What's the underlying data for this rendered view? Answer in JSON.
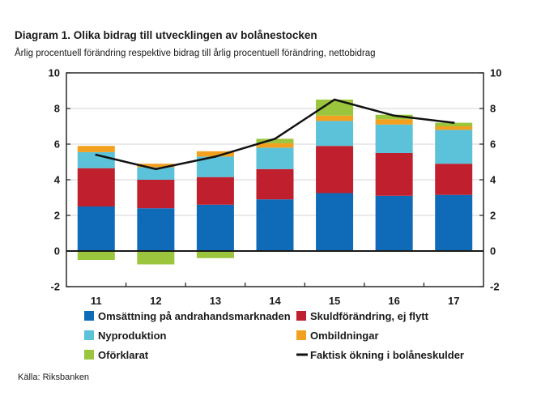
{
  "header": {
    "title": "Diagram 1. Olika bidrag till utvecklingen av bolånestocken",
    "subtitle": "Årlig procentuell förändring respektive bidrag till årlig procentuell förändring, nettobidrag"
  },
  "footer": {
    "source": "Källa: Riksbanken"
  },
  "chart_data": {
    "type": "bar",
    "stacked": true,
    "title": "Diagram 1. Olika bidrag till utvecklingen av bolånestocken",
    "ylabel": "Årlig procentuell förändring respektive bidrag till årlig procentuell förändring, nettobidrag",
    "xlabel": "",
    "ylim": [
      -2,
      10
    ],
    "yticks": [
      -2,
      0,
      2,
      4,
      6,
      8,
      10
    ],
    "categories": [
      "11",
      "12",
      "13",
      "14",
      "15",
      "16",
      "17"
    ],
    "series": [
      {
        "name": "Omsättning på andrahandsmarknaden",
        "type": "bar",
        "color": "#0f6bb8",
        "values": [
          2.5,
          2.4,
          2.6,
          2.9,
          3.25,
          3.1,
          3.15
        ]
      },
      {
        "name": "Skuldförändring, ej flytt",
        "type": "bar",
        "color": "#c0202e",
        "values": [
          2.15,
          1.6,
          1.55,
          1.7,
          2.65,
          2.4,
          1.75
        ]
      },
      {
        "name": "Nyproduktion",
        "type": "bar",
        "color": "#5bc2d9",
        "values": [
          0.9,
          0.7,
          1.15,
          1.2,
          1.4,
          1.6,
          1.9
        ]
      },
      {
        "name": "Ombildningar",
        "type": "bar",
        "color": "#f2a020",
        "values": [
          0.35,
          0.2,
          0.3,
          0.25,
          0.3,
          0.3,
          0.2
        ]
      },
      {
        "name": "Oförklarat",
        "type": "bar",
        "color": "#9ac53c",
        "values": [
          -0.5,
          -0.75,
          -0.4,
          0.25,
          0.9,
          0.25,
          0.2
        ]
      },
      {
        "name": "Faktisk ökning i bolåneskulder",
        "type": "line",
        "color": "#111111",
        "values": [
          5.4,
          4.6,
          5.3,
          6.3,
          8.5,
          7.6,
          7.2
        ]
      }
    ],
    "legend": {
      "position": "bottom",
      "entries": [
        "Omsättning på andrahandsmarknaden",
        "Skuldförändring, ej flytt",
        "Nyproduktion",
        "Ombildningar",
        "Oförklarat",
        "Faktisk ökning i bolåneskulder"
      ]
    }
  }
}
